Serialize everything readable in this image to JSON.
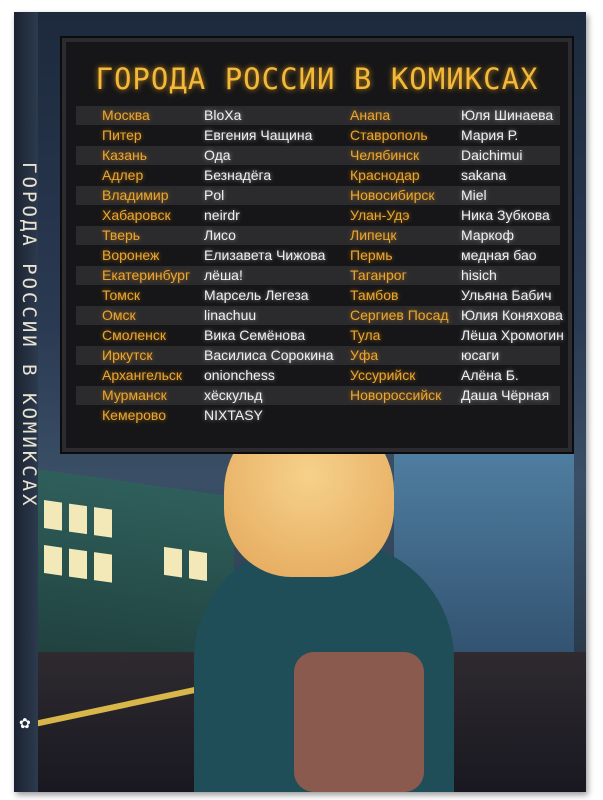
{
  "title": "ГОРОДА РОССИИ В КОМИКСАХ",
  "spine_title": "ГОРОДА РОССИИ В КОМИКСАХ",
  "colors": {
    "city": "#e8a735",
    "name": "#f0f0f0",
    "board": "#161618"
  },
  "left_column": [
    {
      "city": "Москва",
      "author": "BloXa"
    },
    {
      "city": "Питер",
      "author": "Евгения Чащина"
    },
    {
      "city": "Казань",
      "author": "Ода"
    },
    {
      "city": "Адлер",
      "author": "Безнадёга"
    },
    {
      "city": "Владимир",
      "author": "Pol"
    },
    {
      "city": "Хабаровск",
      "author": "neirdr"
    },
    {
      "city": "Тверь",
      "author": "Лисо"
    },
    {
      "city": "Воронеж",
      "author": "Елизавета Чижова"
    },
    {
      "city": "Екатеринбург",
      "author": "лёша!"
    },
    {
      "city": "Томск",
      "author": "Марсель Легеза"
    },
    {
      "city": "Омск",
      "author": "linachuu"
    },
    {
      "city": "Смоленск",
      "author": "Вика Семёнова"
    },
    {
      "city": "Иркутск",
      "author": "Василиса Сорокина"
    },
    {
      "city": "Архангельск",
      "author": "onionchess"
    },
    {
      "city": "Мурманск",
      "author": "хёскульд"
    },
    {
      "city": "Кемерово",
      "author": "NIXTASY"
    }
  ],
  "right_column": [
    {
      "city": "Анапа",
      "author": "Юля Шинаева"
    },
    {
      "city": "Ставрополь",
      "author": "Мария Р."
    },
    {
      "city": "Челябинск",
      "author": "Daichimui"
    },
    {
      "city": "Краснодар",
      "author": "sakana"
    },
    {
      "city": "Новосибирск",
      "author": "Miel"
    },
    {
      "city": "Улан-Удэ",
      "author": "Ника Зубкова"
    },
    {
      "city": "Липецк",
      "author": "Маркоф"
    },
    {
      "city": "Пермь",
      "author": "медная бао"
    },
    {
      "city": "Таганрог",
      "author": "hisich"
    },
    {
      "city": "Тамбов",
      "author": "Ульяна Бабич"
    },
    {
      "city": "Сергиев Посад",
      "author": "Юлия Коняхова"
    },
    {
      "city": "Тула",
      "author": "Лёша Хромогин"
    },
    {
      "city": "Уфа",
      "author": "юсаги"
    },
    {
      "city": "Уссурийск",
      "author": "Алёна Б."
    },
    {
      "city": "Новороссийск",
      "author": "Даша Чёрная"
    }
  ]
}
